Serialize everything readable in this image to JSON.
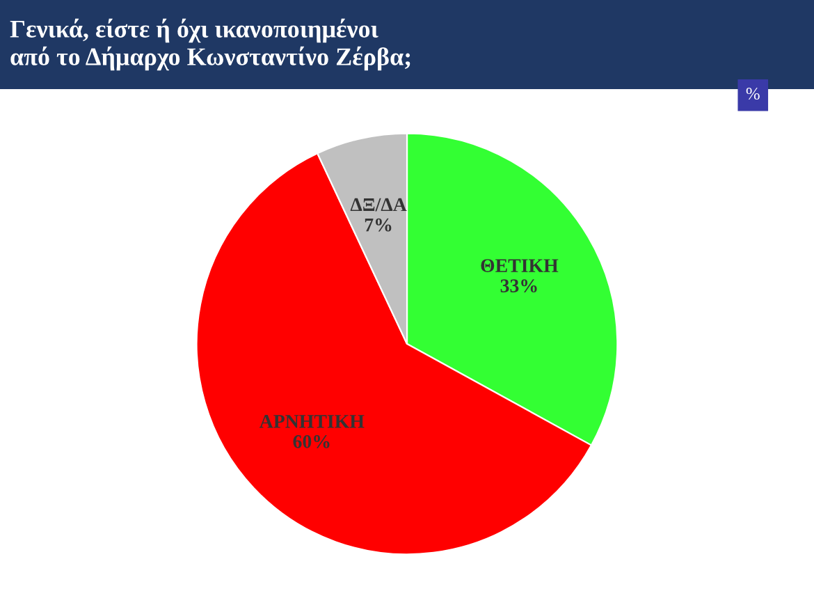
{
  "chart_data": {
    "type": "pie",
    "title": "Γενικά, είστε ή όχι ικανοποιημένοι\nαπό το Δήμαρχο Κωνσταντίνο Ζέρβα;",
    "categories": [
      "ΘΕΤΙΚΗ",
      "ΑΡΝΗΤΙΚΗ",
      "ΔΞ/ΔΑ"
    ],
    "values": [
      33,
      60,
      7
    ],
    "value_labels": [
      "33%",
      "60%",
      "7%"
    ],
    "colors": [
      "#33ff33",
      "#ff0000",
      "#c0c0c0"
    ],
    "annotations": [
      "%"
    ]
  }
}
